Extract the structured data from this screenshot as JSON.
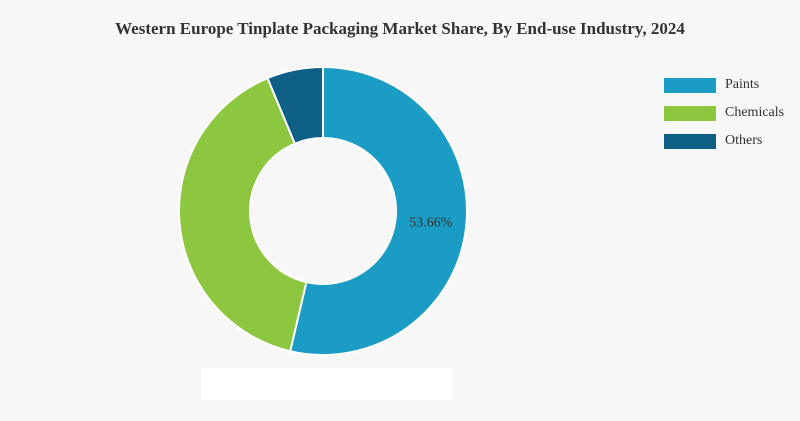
{
  "chart_data": {
    "type": "donut",
    "title": "Western Europe Tinplate Packaging Market Share, By End-use Industry, 2024",
    "categories": [
      "Paints",
      "Chemicals",
      "Others"
    ],
    "values": [
      53.66,
      40.04,
      6.3
    ],
    "value_labels": [
      "53.66%",
      null,
      null
    ],
    "colors": [
      "#1b9cc4",
      "#8dc63f",
      "#0d5f86"
    ],
    "legend": "top-right"
  }
}
